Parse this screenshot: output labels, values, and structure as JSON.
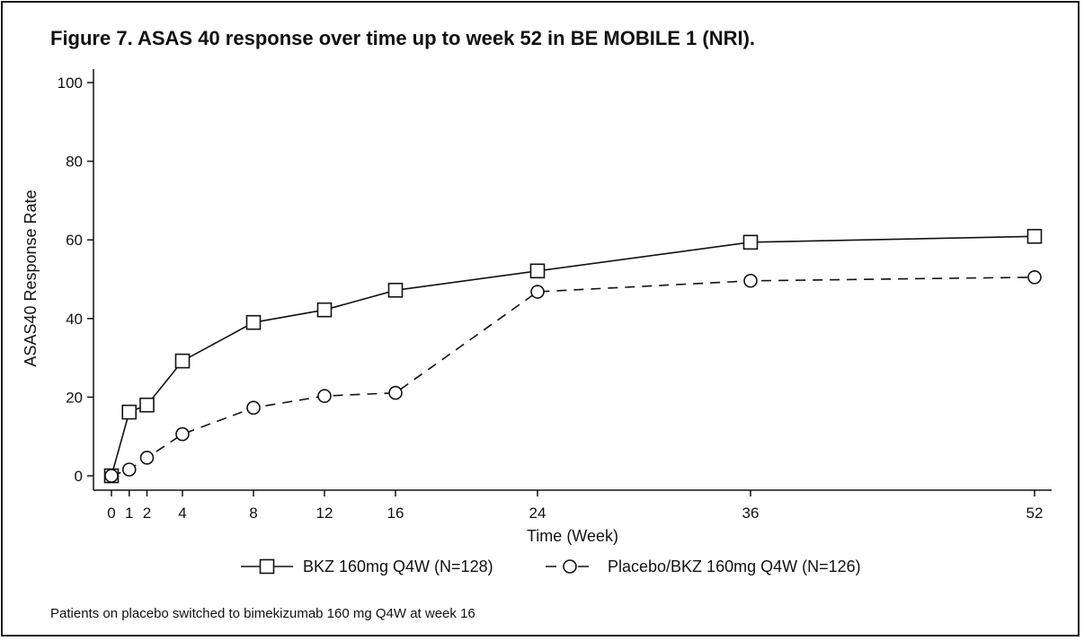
{
  "title": "Figure 7. ASAS 40 response over time up to week 52 in BE MOBILE 1 (NRI).",
  "footnote": "Patients on placebo switched to bimekizumab 160 mg Q4W at week 16",
  "chart_data": {
    "type": "line",
    "xlabel": "Time (Week)",
    "ylabel": "ASAS40 Response Rate",
    "xlim": [
      -1,
      53
    ],
    "ylim": [
      0,
      100
    ],
    "xticks": [
      0,
      1,
      2,
      4,
      8,
      12,
      16,
      24,
      36,
      52
    ],
    "yticks": [
      0,
      20,
      40,
      60,
      80,
      100
    ],
    "legend_position": "bottom",
    "series": [
      {
        "name": "BKZ 160mg Q4W (N=128)",
        "marker": "square",
        "line_style": "solid",
        "x": [
          0,
          1,
          2,
          4,
          8,
          12,
          16,
          24,
          36,
          52
        ],
        "y": [
          0,
          16.2,
          18.0,
          29.2,
          39.0,
          42.2,
          47.2,
          52.1,
          59.4,
          60.9
        ]
      },
      {
        "name": "Placebo/BKZ 160mg Q4W (N=126)",
        "marker": "circle",
        "line_style": "dashed",
        "x": [
          0,
          1,
          2,
          4,
          8,
          12,
          16,
          24,
          36,
          52
        ],
        "y": [
          0,
          1.6,
          4.6,
          10.6,
          17.3,
          20.3,
          21.1,
          46.8,
          49.6,
          50.5
        ]
      }
    ]
  }
}
